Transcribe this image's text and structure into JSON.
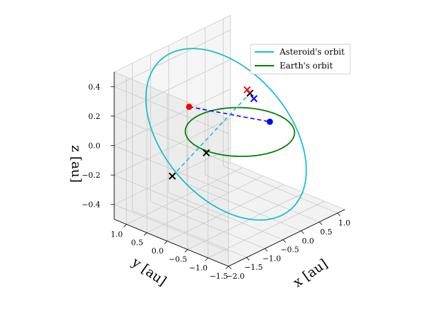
{
  "chart_data": {
    "type": "line3d",
    "title": "",
    "xlabel": "$x$ [au]",
    "ylabel": "$y$ [au]",
    "zlabel": "$z$ [au]",
    "xlabel_display": "x [au]",
    "ylabel_display": "y [au]",
    "zlabel_display": "z [au]",
    "xlim": [
      -2.0,
      1.2
    ],
    "ylim": [
      -1.5,
      1.3
    ],
    "zlim": [
      -0.5,
      0.5
    ],
    "x_ticks": [
      -2.0,
      -1.5,
      -1.0,
      -0.5,
      0.0,
      0.5,
      1.0
    ],
    "y_ticks": [
      -1.5,
      -1.0,
      -0.5,
      0.0,
      0.5,
      1.0
    ],
    "z_ticks": [
      -0.4,
      -0.2,
      0.0,
      0.2,
      0.4
    ],
    "x_tick_labels": [
      "−2.0",
      "−1.5",
      "−1.0",
      "−0.5",
      "0.0",
      "0.5",
      "1.0"
    ],
    "y_tick_labels": [
      "−1.5",
      "−1.0",
      "−0.5",
      "0.0",
      "0.5",
      "1.0"
    ],
    "z_tick_labels": [
      "−0.4",
      "−0.2",
      "0.0",
      "0.2",
      "0.4"
    ],
    "grid": true,
    "legend_position": "upper right",
    "series": [
      {
        "name": "Asteroid's orbit",
        "color": "#17becf",
        "kind": "ellipse",
        "center": [
          -0.38,
          0.0,
          0.03
        ],
        "axis_u": [
          1.38,
          -0.68,
          -0.2
        ],
        "axis_v": [
          0.35,
          0.78,
          0.44
        ]
      },
      {
        "name": "Earth's orbit",
        "color": "#008000",
        "kind": "ellipse",
        "center": [
          0.0,
          0.0,
          0.0
        ],
        "axis_u": [
          1.0,
          0.0,
          0.0
        ],
        "axis_v": [
          0.0,
          1.0,
          0.0
        ]
      }
    ],
    "lines": [
      {
        "color": "#0000ff",
        "from": [
          -0.5,
          0.8,
          0.14
        ],
        "to": [
          0.6,
          -0.2,
          0.02
        ]
      },
      {
        "color": "#17becf",
        "from": [
          -1.3,
          0.5,
          -0.2
        ],
        "to": [
          0.5,
          0.2,
          0.18
        ]
      }
    ],
    "points": [
      {
        "marker": "circle",
        "color": "#ff0000",
        "xyz": [
          -0.5,
          0.8,
          0.14
        ]
      },
      {
        "marker": "circle",
        "color": "#0000ff",
        "xyz": [
          0.6,
          -0.2,
          0.02
        ]
      },
      {
        "marker": "x",
        "color": "#000000",
        "xyz": [
          -1.3,
          0.5,
          -0.2
        ]
      },
      {
        "marker": "x",
        "color": "#000000",
        "xyz": [
          0.5,
          0.2,
          0.18
        ]
      },
      {
        "marker": "x",
        "color": "#000000",
        "xyz": [
          -0.7,
          0.2,
          -0.08
        ]
      },
      {
        "marker": "x",
        "color": "#0000ff",
        "xyz": [
          0.52,
          0.12,
          0.15
        ]
      },
      {
        "marker": "x",
        "color": "#ff0000",
        "xyz": [
          0.48,
          0.25,
          0.2
        ]
      }
    ]
  }
}
